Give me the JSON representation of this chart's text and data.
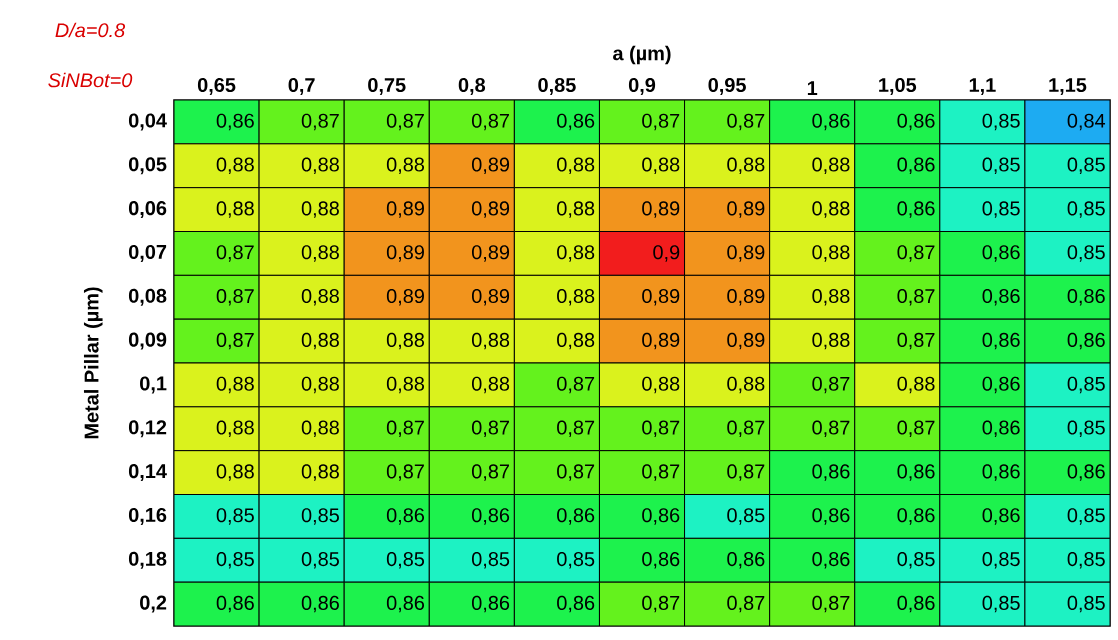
{
  "chart_data": {
    "type": "heatmap",
    "xlabel": "a (µm)",
    "ylabel": "Metal Pillar (µm)",
    "annotations": [
      "D/a=0.8",
      "SiNBot=0"
    ],
    "categories": [
      "0,65",
      "0,7",
      "0,75",
      "0,8",
      "0,85",
      "0,9",
      "0,95",
      "1",
      "1,05",
      "1,1",
      "1,15"
    ],
    "y_categories": [
      "0,04",
      "0,05",
      "0,06",
      "0,07",
      "0,08",
      "0,09",
      "0,1",
      "0,12",
      "0,14",
      "0,16",
      "0,18",
      "0,2"
    ],
    "cells": [
      [
        0.86,
        0.87,
        0.87,
        0.87,
        0.86,
        0.87,
        0.87,
        0.86,
        0.86,
        0.85,
        0.84
      ],
      [
        0.88,
        0.88,
        0.88,
        0.89,
        0.88,
        0.88,
        0.88,
        0.88,
        0.86,
        0.85,
        0.85
      ],
      [
        0.88,
        0.88,
        0.89,
        0.89,
        0.88,
        0.89,
        0.89,
        0.88,
        0.86,
        0.85,
        0.85
      ],
      [
        0.87,
        0.88,
        0.89,
        0.89,
        0.88,
        0.9,
        0.89,
        0.88,
        0.87,
        0.86,
        0.85
      ],
      [
        0.87,
        0.88,
        0.89,
        0.89,
        0.88,
        0.89,
        0.89,
        0.88,
        0.87,
        0.86,
        0.86
      ],
      [
        0.87,
        0.88,
        0.88,
        0.88,
        0.88,
        0.89,
        0.89,
        0.88,
        0.87,
        0.86,
        0.86
      ],
      [
        0.88,
        0.88,
        0.88,
        0.88,
        0.87,
        0.88,
        0.88,
        0.87,
        0.88,
        0.86,
        0.85
      ],
      [
        0.88,
        0.88,
        0.87,
        0.87,
        0.87,
        0.87,
        0.87,
        0.87,
        0.87,
        0.86,
        0.85
      ],
      [
        0.88,
        0.88,
        0.87,
        0.87,
        0.87,
        0.87,
        0.87,
        0.86,
        0.86,
        0.86,
        0.86
      ],
      [
        0.85,
        0.85,
        0.86,
        0.86,
        0.86,
        0.86,
        0.85,
        0.86,
        0.86,
        0.86,
        0.85
      ],
      [
        0.85,
        0.85,
        0.85,
        0.85,
        0.85,
        0.86,
        0.86,
        0.86,
        0.85,
        0.85,
        0.85
      ],
      [
        0.86,
        0.86,
        0.86,
        0.86,
        0.86,
        0.87,
        0.87,
        0.87,
        0.86,
        0.85,
        0.85
      ]
    ],
    "cell_labels": [
      [
        "0,86",
        "0,87",
        "0,87",
        "0,87",
        "0,86",
        "0,87",
        "0,87",
        "0,86",
        "0,86",
        "0,85",
        "0,84"
      ],
      [
        "0,88",
        "0,88",
        "0,88",
        "0,89",
        "0,88",
        "0,88",
        "0,88",
        "0,88",
        "0,86",
        "0,85",
        "0,85"
      ],
      [
        "0,88",
        "0,88",
        "0,89",
        "0,89",
        "0,88",
        "0,89",
        "0,89",
        "0,88",
        "0,86",
        "0,85",
        "0,85"
      ],
      [
        "0,87",
        "0,88",
        "0,89",
        "0,89",
        "0,88",
        "0,9",
        "0,89",
        "0,88",
        "0,87",
        "0,86",
        "0,85"
      ],
      [
        "0,87",
        "0,88",
        "0,89",
        "0,89",
        "0,88",
        "0,89",
        "0,89",
        "0,88",
        "0,87",
        "0,86",
        "0,86"
      ],
      [
        "0,87",
        "0,88",
        "0,88",
        "0,88",
        "0,88",
        "0,89",
        "0,89",
        "0,88",
        "0,87",
        "0,86",
        "0,86"
      ],
      [
        "0,88",
        "0,88",
        "0,88",
        "0,88",
        "0,87",
        "0,88",
        "0,88",
        "0,87",
        "0,88",
        "0,86",
        "0,85"
      ],
      [
        "0,88",
        "0,88",
        "0,87",
        "0,87",
        "0,87",
        "0,87",
        "0,87",
        "0,87",
        "0,87",
        "0,86",
        "0,85"
      ],
      [
        "0,88",
        "0,88",
        "0,87",
        "0,87",
        "0,87",
        "0,87",
        "0,87",
        "0,86",
        "0,86",
        "0,86",
        "0,86"
      ],
      [
        "0,85",
        "0,85",
        "0,86",
        "0,86",
        "0,86",
        "0,86",
        "0,85",
        "0,86",
        "0,86",
        "0,86",
        "0,85"
      ],
      [
        "0,85",
        "0,85",
        "0,85",
        "0,85",
        "0,85",
        "0,86",
        "0,86",
        "0,86",
        "0,85",
        "0,85",
        "0,85"
      ],
      [
        "0,86",
        "0,86",
        "0,86",
        "0,86",
        "0,86",
        "0,87",
        "0,87",
        "0,87",
        "0,86",
        "0,85",
        "0,85"
      ]
    ]
  }
}
